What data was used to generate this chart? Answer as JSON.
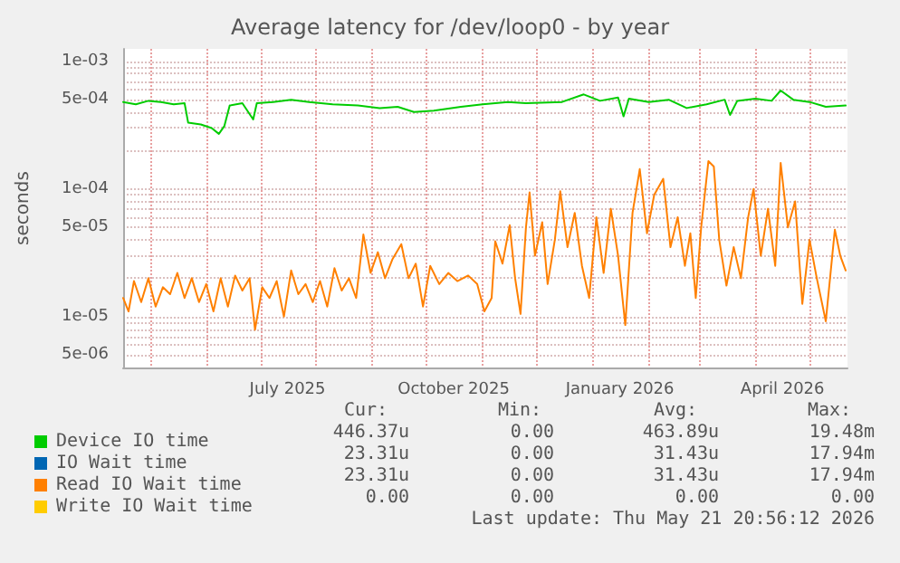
{
  "chart_data": {
    "type": "line",
    "title": "Average latency for /dev/loop0 - by year",
    "ylabel": "seconds",
    "xlim": [
      "2025-04-16",
      "2026-05-22"
    ],
    "xticks": [
      {
        "value": "2025-05-01",
        "label": null
      },
      {
        "value": "2025-06-01",
        "label": null
      },
      {
        "value": "2025-07-01",
        "label": null
      },
      {
        "value": "2025-07-16",
        "label": "July 2025"
      },
      {
        "value": "2025-08-01",
        "label": null
      },
      {
        "value": "2025-09-01",
        "label": null
      },
      {
        "value": "2025-10-01",
        "label": null
      },
      {
        "value": "2025-10-16",
        "label": "October 2025"
      },
      {
        "value": "2025-11-01",
        "label": null
      },
      {
        "value": "2025-12-01",
        "label": null
      },
      {
        "value": "2026-01-01",
        "label": null
      },
      {
        "value": "2026-01-16",
        "label": "January 2026"
      },
      {
        "value": "2026-02-01",
        "label": null
      },
      {
        "value": "2026-03-01",
        "label": null
      },
      {
        "value": "2026-04-01",
        "label": null
      },
      {
        "value": "2026-04-16",
        "label": "April 2026"
      },
      {
        "value": "2026-05-01",
        "label": null
      }
    ],
    "log": true,
    "ylim": [
      4e-06,
      0.00125
    ],
    "yticks": [
      {
        "value": 5e-06,
        "label": "5e-06"
      },
      {
        "value": 6e-06,
        "label": null
      },
      {
        "value": 7e-06,
        "label": null
      },
      {
        "value": 8e-06,
        "label": null
      },
      {
        "value": 9e-06,
        "label": null
      },
      {
        "value": 1e-05,
        "label": "1e-05"
      },
      {
        "value": 2e-05,
        "label": null
      },
      {
        "value": 3e-05,
        "label": null
      },
      {
        "value": 4e-05,
        "label": null
      },
      {
        "value": 5e-05,
        "label": "5e-05"
      },
      {
        "value": 6e-05,
        "label": null
      },
      {
        "value": 7e-05,
        "label": null
      },
      {
        "value": 8e-05,
        "label": null
      },
      {
        "value": 9e-05,
        "label": null
      },
      {
        "value": 0.0001,
        "label": "1e-04"
      },
      {
        "value": 0.0002,
        "label": null
      },
      {
        "value": 0.0003,
        "label": null
      },
      {
        "value": 0.0004,
        "label": null
      },
      {
        "value": 0.0005,
        "label": "5e-04"
      },
      {
        "value": 0.0006,
        "label": null
      },
      {
        "value": 0.0007,
        "label": null
      },
      {
        "value": 0.0008,
        "label": null
      },
      {
        "value": 0.0009,
        "label": null
      },
      {
        "value": 0.001,
        "label": "1e-03"
      }
    ],
    "grid": true,
    "legend": "bottom",
    "marker": "none",
    "line_style": "solid",
    "series": [
      {
        "name": "Device IO time",
        "color": "#00cc00",
        "x": [
          "2025-04-16",
          "2025-04-23",
          "2025-04-30",
          "2025-05-07",
          "2025-05-14",
          "2025-05-20",
          "2025-05-22",
          "2025-05-29",
          "2025-06-04",
          "2025-06-08",
          "2025-06-11",
          "2025-06-14",
          "2025-06-21",
          "2025-06-27",
          "2025-06-29",
          "2025-07-08",
          "2025-07-18",
          "2025-07-28",
          "2025-08-10",
          "2025-08-24",
          "2025-09-05",
          "2025-09-15",
          "2025-09-24",
          "2025-10-05",
          "2025-10-20",
          "2025-11-01",
          "2025-11-15",
          "2025-11-25",
          "2025-12-15",
          "2025-12-27",
          "2026-01-05",
          "2026-01-15",
          "2026-01-18",
          "2026-01-21",
          "2026-02-01",
          "2026-02-12",
          "2026-02-22",
          "2026-03-05",
          "2026-03-15",
          "2026-03-18",
          "2026-03-22",
          "2026-04-01",
          "2026-04-10",
          "2026-04-15",
          "2026-04-22",
          "2026-05-01",
          "2026-05-10",
          "2026-05-21"
        ],
        "values": [
          0.00048,
          0.00046,
          0.00049,
          0.00048,
          0.00046,
          0.00047,
          0.00033,
          0.00032,
          0.0003,
          0.00027,
          0.00031,
          0.00045,
          0.00047,
          0.00035,
          0.00047,
          0.00048,
          0.0005,
          0.00048,
          0.00046,
          0.00045,
          0.00043,
          0.00044,
          0.0004,
          0.00041,
          0.00044,
          0.00046,
          0.00048,
          0.00047,
          0.00048,
          0.00055,
          0.00049,
          0.00052,
          0.00037,
          0.00051,
          0.00048,
          0.0005,
          0.00043,
          0.00046,
          0.0005,
          0.00038,
          0.00049,
          0.00051,
          0.00049,
          0.00059,
          0.0005,
          0.00048,
          0.00044,
          0.00045
        ]
      },
      {
        "name": "IO Wait time",
        "color": "#0066b3"
      },
      {
        "name": "Read IO Wait time",
        "color": "#ff8000",
        "x": [
          "2025-04-16",
          "2025-04-19",
          "2025-04-22",
          "2025-04-26",
          "2025-04-30",
          "2025-05-04",
          "2025-05-08",
          "2025-05-12",
          "2025-05-16",
          "2025-05-20",
          "2025-05-24",
          "2025-05-28",
          "2025-06-01",
          "2025-06-05",
          "2025-06-09",
          "2025-06-13",
          "2025-06-17",
          "2025-06-21",
          "2025-06-25",
          "2025-06-28",
          "2025-07-02",
          "2025-07-06",
          "2025-07-10",
          "2025-07-14",
          "2025-07-18",
          "2025-07-22",
          "2025-07-26",
          "2025-07-30",
          "2025-08-03",
          "2025-08-07",
          "2025-08-11",
          "2025-08-15",
          "2025-08-19",
          "2025-08-23",
          "2025-08-27",
          "2025-08-31",
          "2025-09-04",
          "2025-09-08",
          "2025-09-12",
          "2025-09-17",
          "2025-09-21",
          "2025-09-25",
          "2025-09-29",
          "2025-10-03",
          "2025-10-08",
          "2025-10-13",
          "2025-10-18",
          "2025-10-24",
          "2025-10-29",
          "2025-11-02",
          "2025-11-06",
          "2025-11-08",
          "2025-11-12",
          "2025-11-16",
          "2025-11-19",
          "2025-11-22",
          "2025-11-25",
          "2025-11-27",
          "2025-11-30",
          "2025-12-04",
          "2025-12-07",
          "2025-12-11",
          "2025-12-14",
          "2025-12-18",
          "2025-12-22",
          "2025-12-26",
          "2025-12-30",
          "2026-01-03",
          "2026-01-07",
          "2026-01-11",
          "2026-01-15",
          "2026-01-19",
          "2026-01-23",
          "2026-01-27",
          "2026-01-31",
          "2026-02-04",
          "2026-02-09",
          "2026-02-13",
          "2026-02-17",
          "2026-02-21",
          "2026-02-24",
          "2026-02-27",
          "2026-03-02",
          "2026-03-06",
          "2026-03-09",
          "2026-03-12",
          "2026-03-16",
          "2026-03-20",
          "2026-03-24",
          "2026-03-28",
          "2026-03-31",
          "2026-04-04",
          "2026-04-08",
          "2026-04-12",
          "2026-04-15",
          "2026-04-19",
          "2026-04-23",
          "2026-04-27",
          "2026-05-01",
          "2026-05-05",
          "2026-05-10",
          "2026-05-15",
          "2026-05-18",
          "2026-05-21"
        ],
        "values": [
          1.4e-05,
          1.1e-05,
          1.9e-05,
          1.3e-05,
          2e-05,
          1.2e-05,
          1.7e-05,
          1.5e-05,
          2.2e-05,
          1.4e-05,
          2e-05,
          1.3e-05,
          1.8e-05,
          1.1e-05,
          2e-05,
          1.2e-05,
          2.1e-05,
          1.6e-05,
          2e-05,
          7.9e-06,
          1.7e-05,
          1.4e-05,
          1.9e-05,
          1e-05,
          2.3e-05,
          1.5e-05,
          1.8e-05,
          1.3e-05,
          1.9e-05,
          1.2e-05,
          2.4e-05,
          1.6e-05,
          2e-05,
          1.4e-05,
          4.4e-05,
          2.2e-05,
          3.2e-05,
          2e-05,
          2.8e-05,
          3.7e-05,
          2e-05,
          2.6e-05,
          1.2e-05,
          2.5e-05,
          1.8e-05,
          2.2e-05,
          1.9e-05,
          2.1e-05,
          1.8e-05,
          1.1e-05,
          1.4e-05,
          3.9e-05,
          2.6e-05,
          5.2e-05,
          2e-05,
          1.05e-05,
          5e-05,
          9.4e-05,
          3e-05,
          5.5e-05,
          1.8e-05,
          4e-05,
          9.6e-05,
          3.5e-05,
          6.5e-05,
          2.5e-05,
          1.4e-05,
          6e-05,
          2.2e-05,
          7e-05,
          3e-05,
          8.6e-06,
          6.5e-05,
          0.000143,
          4.5e-05,
          9e-05,
          0.00012,
          3.5e-05,
          6e-05,
          2.5e-05,
          4.5e-05,
          1.4e-05,
          5e-05,
          0.000165,
          0.00015,
          4e-05,
          1.75e-05,
          3.5e-05,
          2e-05,
          6e-05,
          0.0001,
          3e-05,
          7e-05,
          2.5e-05,
          0.00016,
          5e-05,
          8e-05,
          1.26e-05,
          4e-05,
          2e-05,
          9.2e-06,
          4.8e-05,
          3e-05,
          2.3e-05
        ]
      },
      {
        "name": "Write IO Wait time",
        "color": "#ffcc00"
      }
    ],
    "annotations": [
      "Cur:",
      "Min:",
      "Avg:",
      "Max:",
      "446.37u",
      "0.00",
      "463.89u",
      "19.48m",
      "23.31u",
      "0.00",
      "31.43u",
      "17.94m",
      "23.31u",
      "0.00",
      "31.43u",
      "17.94m",
      "0.00",
      "0.00",
      "0.00",
      "0.00",
      "Last update: Thu May 21 20:56:12 2026"
    ]
  }
}
